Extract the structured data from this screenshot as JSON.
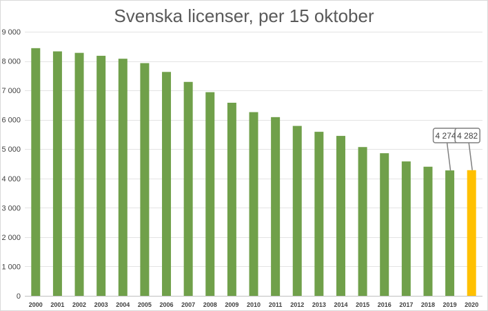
{
  "chart_data": {
    "type": "bar",
    "title": "Svenska licenser, per 15 oktober",
    "xlabel": "",
    "ylabel": "",
    "ylim": [
      0,
      9000
    ],
    "yticks": [
      0,
      1000,
      2000,
      3000,
      4000,
      5000,
      6000,
      7000,
      8000,
      9000
    ],
    "ytick_labels": [
      "0",
      "1 000",
      "2 000",
      "3 000",
      "4 000",
      "5 000",
      "6 000",
      "7 000",
      "8 000",
      "9 000"
    ],
    "grid": true,
    "categories": [
      "2000",
      "2001",
      "2002",
      "2003",
      "2004",
      "2005",
      "2006",
      "2007",
      "2008",
      "2009",
      "2010",
      "2011",
      "2012",
      "2013",
      "2014",
      "2015",
      "2016",
      "2017",
      "2018",
      "2019",
      "2020"
    ],
    "values": [
      8440,
      8330,
      8280,
      8180,
      8080,
      7930,
      7630,
      7290,
      6940,
      6580,
      6260,
      6090,
      5790,
      5590,
      5450,
      5070,
      4860,
      4580,
      4400,
      4274,
      4282
    ],
    "bar_color": "#70a04a",
    "highlight_color": "#ffc000",
    "highlight_index": 20,
    "data_labels": [
      {
        "index": 19,
        "text": "4 274"
      },
      {
        "index": 20,
        "text": "4 282"
      }
    ]
  }
}
